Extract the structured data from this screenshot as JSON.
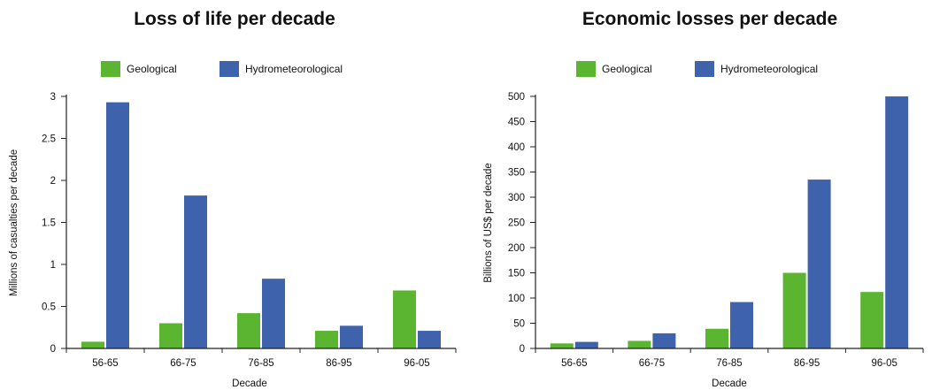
{
  "colors": {
    "geological": "#5cb531",
    "hydrometeorological": "#3f62ad",
    "axis": "#222222"
  },
  "chart_data": [
    {
      "type": "bar",
      "title": "Loss of life per decade",
      "xlabel": "Decade",
      "ylabel": "Millions of casualties per decade",
      "categories": [
        "56-65",
        "66-75",
        "76-85",
        "86-95",
        "96-05"
      ],
      "ylim": [
        0,
        3
      ],
      "yticks": [
        0,
        0.5,
        1,
        1.5,
        2,
        2.5,
        3
      ],
      "ytick_labels": [
        "0",
        "0.5",
        "1",
        "1.5",
        "2",
        "2.5",
        "3"
      ],
      "legend_position": "top",
      "grid": false,
      "series": [
        {
          "name": "Geological",
          "values": [
            0.08,
            0.3,
            0.42,
            0.21,
            0.69
          ]
        },
        {
          "name": "Hydrometeorological",
          "values": [
            2.93,
            1.82,
            0.83,
            0.27,
            0.21
          ]
        }
      ]
    },
    {
      "type": "bar",
      "title": "Economic losses per decade",
      "xlabel": "Decade",
      "ylabel": "Billions of US$ per decade",
      "categories": [
        "56-65",
        "66-75",
        "76-85",
        "86-95",
        "96-05"
      ],
      "ylim": [
        0,
        500
      ],
      "yticks": [
        0,
        50,
        100,
        150,
        200,
        250,
        300,
        350,
        400,
        450,
        500
      ],
      "ytick_labels": [
        "0",
        "50",
        "100",
        "150",
        "200",
        "250",
        "300",
        "350",
        "400",
        "450",
        "500"
      ],
      "legend_position": "top",
      "grid": false,
      "series": [
        {
          "name": "Geological",
          "values": [
            10,
            15,
            39,
            150,
            112
          ]
        },
        {
          "name": "Hydrometeorological",
          "values": [
            13,
            30,
            92,
            335,
            500
          ]
        }
      ]
    }
  ]
}
